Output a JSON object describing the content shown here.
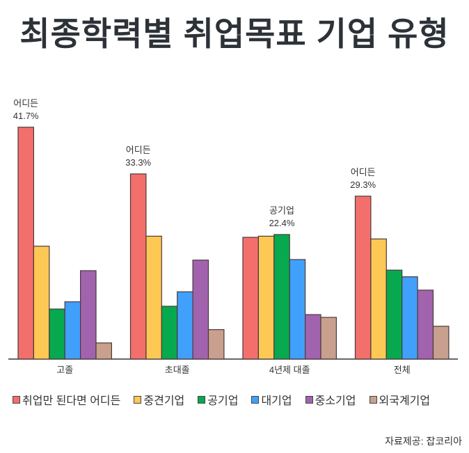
{
  "chart_data": {
    "type": "bar",
    "title": "최종학력별 취업목표 기업 유형",
    "categories": [
      "고졸",
      "초대졸",
      "4년제 대졸",
      "전체"
    ],
    "series": [
      {
        "name": "취업만 된다면 어디든",
        "color": "#f36f6c",
        "values": [
          41.7,
          33.3,
          21.9,
          29.3
        ]
      },
      {
        "name": "중견기업",
        "color": "#fec854",
        "values": [
          20.3,
          22.1,
          22.1,
          21.6
        ]
      },
      {
        "name": "공기업",
        "color": "#07a94e",
        "values": [
          9.0,
          9.5,
          22.4,
          16.0
        ]
      },
      {
        "name": "대기업",
        "color": "#40a0fb",
        "values": [
          10.3,
          12.1,
          17.9,
          14.8
        ]
      },
      {
        "name": "중소기업",
        "color": "#a263ae",
        "values": [
          15.9,
          17.8,
          8.0,
          12.4
        ]
      },
      {
        "name": "외국계기업",
        "color": "#c9a08e",
        "values": [
          2.9,
          5.3,
          7.5,
          5.9
        ]
      }
    ],
    "annotations": [
      {
        "category": "고졸",
        "series": "취업만 된다면 어디든",
        "label": "어디든",
        "value": "41.7%"
      },
      {
        "category": "초대졸",
        "series": "취업만 된다면 어디든",
        "label": "어디든",
        "value": "33.3%"
      },
      {
        "category": "4년제 대졸",
        "series": "공기업",
        "label": "공기업",
        "value": "22.4%"
      },
      {
        "category": "전체",
        "series": "취업만 된다면 어디든",
        "label": "어디든",
        "value": "29.3%"
      }
    ],
    "ylim": [
      0,
      45
    ],
    "xlabel": "",
    "ylabel": "",
    "grid": false,
    "legend": "bottom"
  },
  "source": "자료제공: 잡코리아"
}
